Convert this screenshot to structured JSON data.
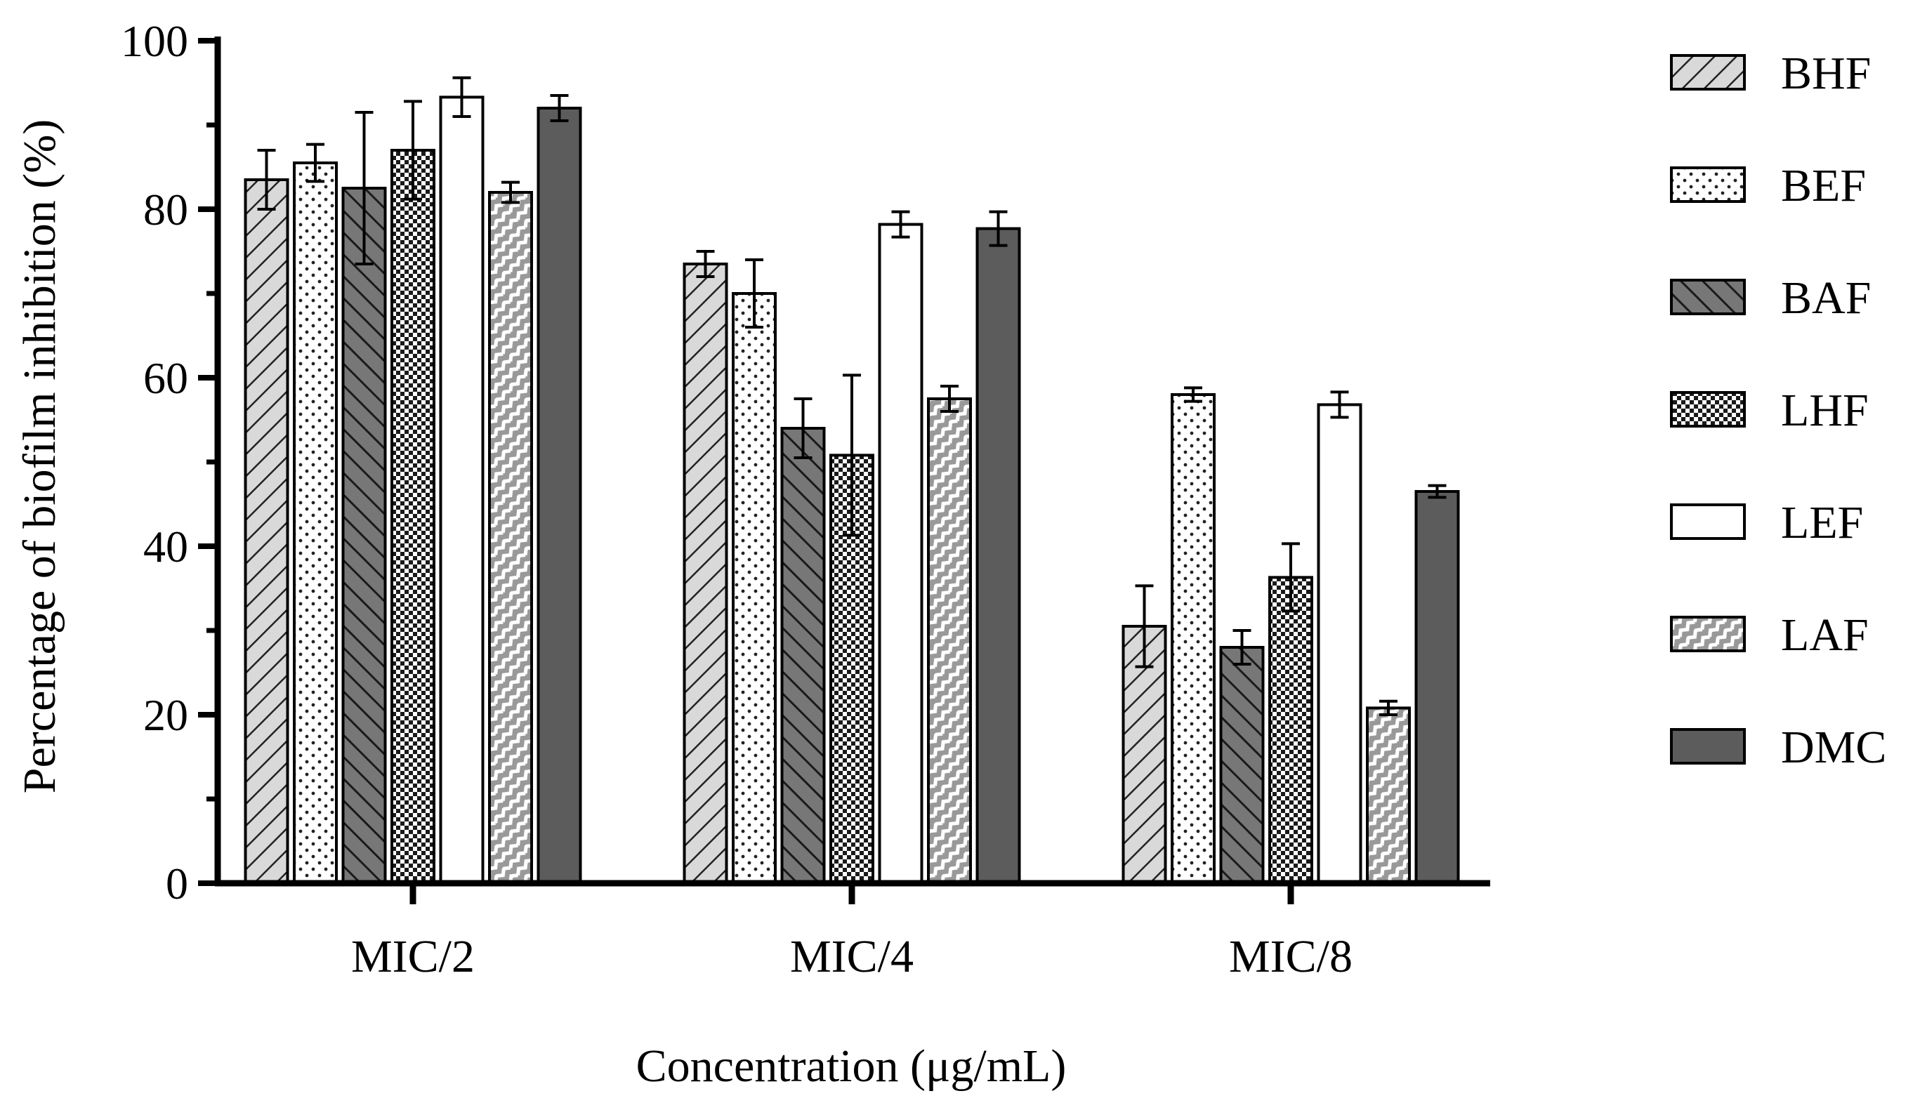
{
  "chart_data": {
    "type": "bar",
    "title": "",
    "xlabel": "Concentration (μg/mL)",
    "ylabel": "Percentage of biofilm inhibition (%)",
    "ylim": [
      0,
      100
    ],
    "yticks": [
      0,
      20,
      40,
      60,
      80,
      100
    ],
    "grid": false,
    "legend_position": "right",
    "categories": [
      "MIC/2",
      "MIC/4",
      "MIC/8"
    ],
    "series": [
      {
        "name": "BHF",
        "pattern": "diagonal-light",
        "color": "#d9d9d9",
        "values": [
          83.5,
          73.5,
          30.5
        ],
        "errors": [
          3.5,
          1.5,
          4.8
        ]
      },
      {
        "name": "BEF",
        "pattern": "dots",
        "color": "#ffffff",
        "values": [
          85.5,
          70.0,
          58.0
        ],
        "errors": [
          2.2,
          4.0,
          0.8
        ]
      },
      {
        "name": "BAF",
        "pattern": "diagonal-dark",
        "color": "#777777",
        "values": [
          82.5,
          54.0,
          28.0
        ],
        "errors": [
          9.0,
          3.5,
          2.0
        ]
      },
      {
        "name": "LHF",
        "pattern": "checker",
        "color": "#ffffff",
        "values": [
          87.0,
          50.8,
          36.3
        ],
        "errors": [
          5.8,
          9.5,
          4.0
        ]
      },
      {
        "name": "LEF",
        "pattern": "none",
        "color": "#ffffff",
        "values": [
          93.3,
          78.2,
          56.8
        ],
        "errors": [
          2.3,
          1.5,
          1.5
        ]
      },
      {
        "name": "LAF",
        "pattern": "zigzag",
        "color": "#999999",
        "values": [
          82.0,
          57.5,
          20.8
        ],
        "errors": [
          1.2,
          1.5,
          0.8
        ]
      },
      {
        "name": "DMC",
        "pattern": "solid",
        "color": "#5c5c5c",
        "values": [
          92.0,
          77.7,
          46.5
        ],
        "errors": [
          1.5,
          2.0,
          0.7
        ]
      }
    ]
  }
}
